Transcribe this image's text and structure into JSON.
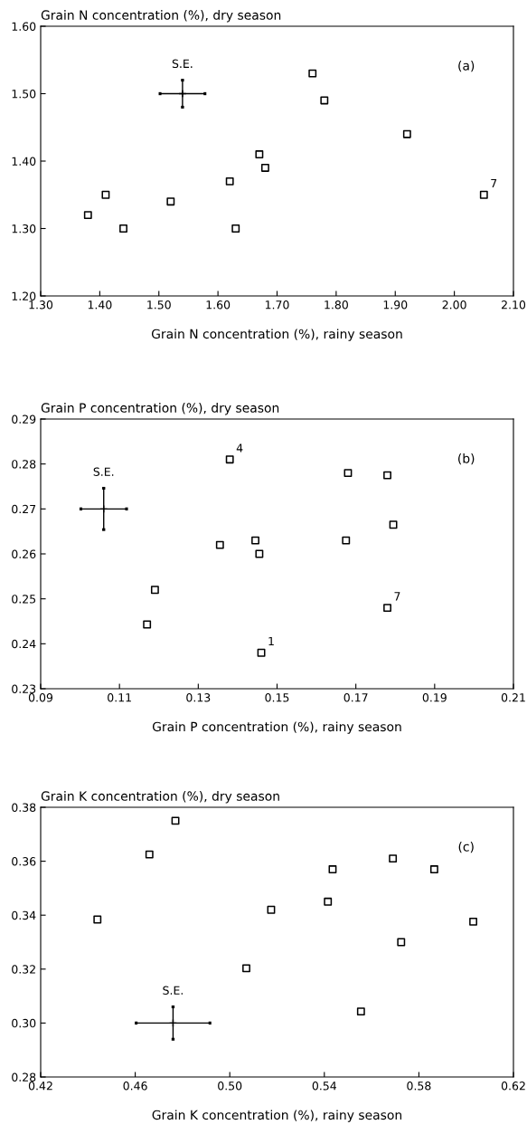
{
  "chart_data": [
    {
      "type": "scatter",
      "ylabel": "Grain N concentration (%), dry season",
      "xlabel": "Grain N concentration (%), rainy season",
      "xlim": [
        1.3,
        2.1
      ],
      "ylim": [
        1.2,
        1.6
      ],
      "xticks": [
        {
          "value": 1.3,
          "label": "1.30"
        },
        {
          "value": 1.4,
          "label": "1.40"
        },
        {
          "value": 1.5,
          "label": "1.50"
        },
        {
          "value": 1.6,
          "label": "1.60"
        },
        {
          "value": 1.7,
          "label": "1.70"
        },
        {
          "value": 1.8,
          "label": "1.80"
        },
        {
          "value": 1.9,
          "label": "1.90"
        },
        {
          "value": 2.0,
          "label": "2.00"
        },
        {
          "value": 2.1,
          "label": "2.10"
        }
      ],
      "yticks": [
        {
          "value": 1.2,
          "label": "1.20"
        },
        {
          "value": 1.3,
          "label": "1.30"
        },
        {
          "value": 1.4,
          "label": "1.40"
        },
        {
          "value": 1.5,
          "label": "1.50"
        },
        {
          "value": 1.6,
          "label": "1.60"
        }
      ],
      "marker": "square",
      "grid": false,
      "legend": false,
      "series": [
        {
          "color": "#000000",
          "x": [
            1.38,
            1.41,
            1.44,
            1.52,
            1.62,
            1.63,
            1.67,
            1.68,
            1.76,
            1.78,
            1.92,
            2.05
          ],
          "values": [
            1.32,
            1.35,
            1.3,
            1.34,
            1.37,
            1.3,
            1.41,
            1.39,
            1.53,
            1.49,
            1.44,
            1.35
          ]
        },
        {
          "name": "S.E.",
          "color": "#000000",
          "marker": "cross",
          "x": [
            1.54
          ],
          "values": [
            1.5
          ],
          "errors": [
            0.02
          ],
          "xerrors": [
            0.038
          ]
        }
      ],
      "annotations": [
        "(a)",
        {
          "text": "7",
          "x": 2.05,
          "y": 1.35
        }
      ]
    },
    {
      "type": "scatter",
      "ylabel": "Grain P concentration (%), dry season",
      "xlabel": "Grain P concentration (%), rainy season",
      "xlim": [
        0.09,
        0.21
      ],
      "ylim": [
        0.23,
        0.29
      ],
      "xticks": [
        {
          "value": 0.09,
          "label": "0.09"
        },
        {
          "value": 0.11,
          "label": "0.11"
        },
        {
          "value": 0.13,
          "label": "0.13"
        },
        {
          "value": 0.15,
          "label": "0.15"
        },
        {
          "value": 0.17,
          "label": "0.17"
        },
        {
          "value": 0.19,
          "label": "0.19"
        },
        {
          "value": 0.21,
          "label": "0.21"
        }
      ],
      "yticks": [
        {
          "value": 0.23,
          "label": "0.23"
        },
        {
          "value": 0.24,
          "label": "0.24"
        },
        {
          "value": 0.25,
          "label": "0.25"
        },
        {
          "value": 0.26,
          "label": "0.26"
        },
        {
          "value": 0.27,
          "label": "0.27"
        },
        {
          "value": 0.28,
          "label": "0.28"
        },
        {
          "value": 0.29,
          "label": "0.29"
        }
      ],
      "marker": "square",
      "grid": false,
      "legend": false,
      "series": [
        {
          "color": "#000000",
          "x": [
            0.138,
            0.168,
            0.178,
            0.1795,
            0.1675,
            0.1445,
            0.1355,
            0.1455,
            0.119,
            0.117,
            0.178,
            0.146
          ],
          "values": [
            0.281,
            0.278,
            0.2775,
            0.2665,
            0.263,
            0.263,
            0.262,
            0.26,
            0.252,
            0.2443,
            0.248,
            0.238
          ]
        },
        {
          "name": "S.E.",
          "color": "#000000",
          "marker": "cross",
          "x": [
            0.106
          ],
          "values": [
            0.27
          ],
          "errors": [
            0.0046
          ],
          "xerrors": [
            0.0058
          ]
        }
      ],
      "annotations": [
        "(b)",
        {
          "text": "4",
          "x": 0.138,
          "y": 0.281
        },
        {
          "text": "7",
          "x": 0.178,
          "y": 0.248
        },
        {
          "text": "1",
          "x": 0.146,
          "y": 0.238
        }
      ]
    },
    {
      "type": "scatter",
      "ylabel": "Grain K concentration (%), dry season",
      "xlabel": "Grain K concentration (%), rainy season",
      "xlim": [
        0.42,
        0.62
      ],
      "ylim": [
        0.28,
        0.38
      ],
      "xticks": [
        {
          "value": 0.42,
          "label": "0.42"
        },
        {
          "value": 0.46,
          "label": "0.46"
        },
        {
          "value": 0.5,
          "label": "0.50"
        },
        {
          "value": 0.54,
          "label": "0.54"
        },
        {
          "value": 0.58,
          "label": "0.58"
        },
        {
          "value": 0.62,
          "label": "0.62"
        }
      ],
      "yticks": [
        {
          "value": 0.28,
          "label": "0.28"
        },
        {
          "value": 0.3,
          "label": "0.30"
        },
        {
          "value": 0.32,
          "label": "0.32"
        },
        {
          "value": 0.34,
          "label": "0.34"
        },
        {
          "value": 0.36,
          "label": "0.36"
        },
        {
          "value": 0.38,
          "label": "0.38"
        }
      ],
      "marker": "square",
      "grid": false,
      "legend": false,
      "series": [
        {
          "color": "#000000",
          "x": [
            0.444,
            0.466,
            0.477,
            0.507,
            0.5175,
            0.5415,
            0.5435,
            0.5555,
            0.569,
            0.5725,
            0.5865,
            0.603
          ],
          "values": [
            0.3384,
            0.3625,
            0.375,
            0.3203,
            0.342,
            0.345,
            0.357,
            0.3043,
            0.361,
            0.33,
            0.357,
            0.3376
          ]
        },
        {
          "name": "S.E.",
          "color": "#000000",
          "marker": "cross",
          "x": [
            0.476
          ],
          "values": [
            0.3
          ],
          "errors": [
            0.006
          ],
          "xerrors": [
            0.0156
          ]
        }
      ],
      "annotations": [
        "(c)"
      ]
    }
  ]
}
